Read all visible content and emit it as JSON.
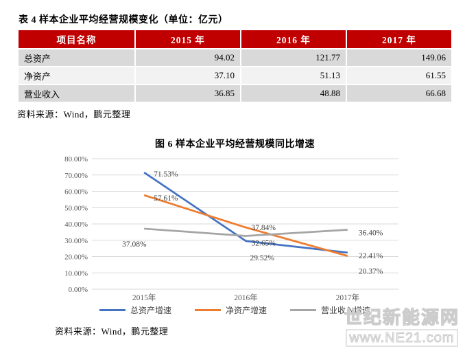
{
  "table_section": {
    "title": "表 4 样本企业平均经营规模变化（单位：亿元）",
    "headers": [
      "项目名称",
      "2015 年",
      "2016 年",
      "2017 年"
    ],
    "rows": [
      {
        "name": "总资产",
        "values": [
          "94.02",
          "121.77",
          "149.06"
        ]
      },
      {
        "name": "净资产",
        "values": [
          "37.10",
          "51.13",
          "61.55"
        ]
      },
      {
        "name": "营业收入",
        "values": [
          "36.85",
          "48.88",
          "66.68"
        ]
      }
    ],
    "source": "资料来源：Wind，鹏元整理"
  },
  "chart_section": {
    "source": "资料来源：Wind，鹏元整理"
  },
  "chart_data": {
    "type": "line",
    "title": "图 6 样本企业平均经营规模同比增速",
    "x": [
      "2015年",
      "2016年",
      "2017年"
    ],
    "series": [
      {
        "name": "总资产增速",
        "color": "#4472C4",
        "values": [
          71.53,
          29.52,
          22.41
        ],
        "labels": [
          "71.53%",
          "29.52%",
          "22.41%"
        ]
      },
      {
        "name": "净资产增速",
        "color": "#ED7D31",
        "values": [
          57.61,
          37.84,
          20.37
        ],
        "labels": [
          "57.61%",
          "37.84%",
          "20.37%"
        ]
      },
      {
        "name": "营业收入增速",
        "color": "#A5A5A5",
        "values": [
          37.08,
          32.65,
          36.4
        ],
        "labels": [
          "37.08%",
          "32.65%",
          "36.40%"
        ]
      }
    ],
    "ylim": [
      0,
      80
    ],
    "ytick_step": 10,
    "ytick_labels": [
      "0.00%",
      "10.00%",
      "20.00%",
      "30.00%",
      "40.00%",
      "50.00%",
      "60.00%",
      "70.00%",
      "80.00%"
    ],
    "grid": true,
    "legend_position": "bottom"
  },
  "watermark": {
    "line1": "世纪新能源网",
    "line2": "www.NE21.com"
  },
  "colors": {
    "header_red": "#C00000",
    "row_dark": "#D9D9D9",
    "row_light": "#F2F2F2",
    "grid_line": "#D9D9D9",
    "axis_text": "#595959",
    "data_label": "#404040"
  }
}
